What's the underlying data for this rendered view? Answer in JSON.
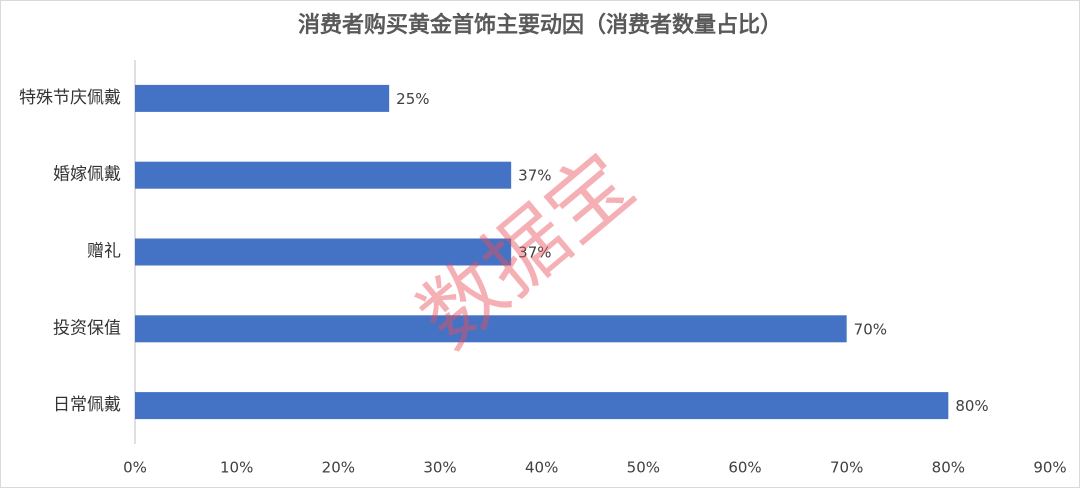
{
  "chart_data": {
    "type": "bar",
    "orientation": "horizontal",
    "title": "消费者购买黄金首饰主要动因（消费者数量占比）",
    "categories": [
      "特殊节庆佩戴",
      "婚嫁佩戴",
      "赠礼",
      "投资保值",
      "日常佩戴"
    ],
    "values": [
      25,
      37,
      37,
      70,
      80
    ],
    "value_labels": [
      "25%",
      "37%",
      "37%",
      "70%",
      "80%"
    ],
    "color": "#4472c4",
    "xlim": [
      0,
      90
    ],
    "xticks": [
      {
        "value": 0,
        "label": "0%"
      },
      {
        "value": 10,
        "label": "10%"
      },
      {
        "value": 20,
        "label": "20%"
      },
      {
        "value": 30,
        "label": "30%"
      },
      {
        "value": 40,
        "label": "40%"
      },
      {
        "value": 50,
        "label": "50%"
      },
      {
        "value": 60,
        "label": "60%"
      },
      {
        "value": 70,
        "label": "70%"
      },
      {
        "value": 80,
        "label": "80%"
      },
      {
        "value": 90,
        "label": "90%"
      }
    ],
    "grid": false,
    "watermark": "数据宝"
  }
}
